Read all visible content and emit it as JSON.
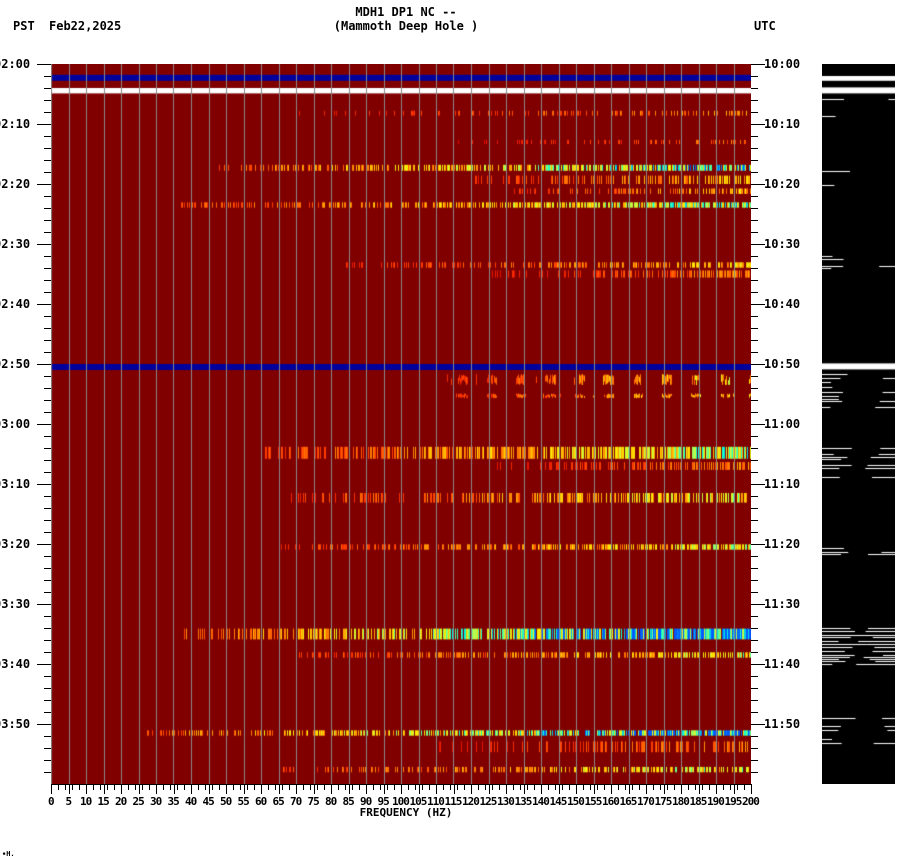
{
  "header": {
    "station_line": "MDH1 DP1 NC --",
    "location_line": "(Mammoth Deep Hole )",
    "left_timezone": "PST",
    "date": "Feb22,2025",
    "right_timezone": "UTC"
  },
  "footer": {
    "mark": "∙H."
  },
  "colors": {
    "background": "#800000",
    "grid": "#888888",
    "gap_blue": "#00009c",
    "gap_white": "#ffffff",
    "seismogram_bg": "#000000",
    "seismogram_trace": "#ffffff"
  },
  "chart_data": {
    "type": "heatmap",
    "title": "MDH1 DP1 NC -- (Mammoth Deep Hole )",
    "subtitle": "Feb22,2025",
    "xlabel": "FREQUENCY (HZ)",
    "ylabel_left": "PST",
    "ylabel_right": "UTC",
    "xlim": [
      0,
      200
    ],
    "x_ticks": [
      0,
      5,
      10,
      15,
      20,
      25,
      30,
      35,
      40,
      45,
      50,
      55,
      60,
      65,
      70,
      75,
      80,
      85,
      90,
      95,
      100,
      105,
      110,
      115,
      120,
      125,
      130,
      135,
      140,
      145,
      150,
      155,
      160,
      165,
      170,
      175,
      180,
      185,
      190,
      195,
      200
    ],
    "x_minor_tick_step": 1,
    "y_range_minutes": [
      0,
      120
    ],
    "y_ticks_left": [
      "02:00",
      "02:10",
      "02:20",
      "02:30",
      "02:40",
      "02:50",
      "03:00",
      "03:10",
      "03:20",
      "03:30",
      "03:40",
      "03:50"
    ],
    "y_ticks_right": [
      "10:00",
      "10:10",
      "10:20",
      "10:30",
      "10:40",
      "10:50",
      "11:00",
      "11:10",
      "11:20",
      "11:30",
      "11:40",
      "11:50"
    ],
    "y_minor_tick_step_min": 2,
    "grid": {
      "vertical_every_hz": 5
    },
    "colormap": "dark-red (low) -> red -> orange -> yellow -> cyan -> blue (high)",
    "gaps": [
      {
        "minute_start": 1.8,
        "minute_end": 2.8,
        "color": "blue"
      },
      {
        "minute_start": 4.0,
        "minute_end": 4.9,
        "color": "white"
      },
      {
        "minute_start": 50.0,
        "minute_end": 51.0,
        "color": "blue"
      }
    ],
    "bands": [
      {
        "minute": 8.2,
        "height_min": 0.8,
        "f_start": 65,
        "f_end": 200,
        "intensity": 0.35,
        "density": 0.35
      },
      {
        "minute": 13.0,
        "height_min": 0.7,
        "f_start": 115,
        "f_end": 200,
        "intensity": 0.3,
        "density": 0.25
      },
      {
        "minute": 17.3,
        "height_min": 1.0,
        "f_start": 45,
        "f_end": 200,
        "intensity": 0.75,
        "density": 0.75
      },
      {
        "minute": 19.3,
        "height_min": 1.4,
        "f_start": 120,
        "f_end": 200,
        "intensity": 0.45,
        "density": 0.55
      },
      {
        "minute": 21.2,
        "height_min": 0.9,
        "f_start": 130,
        "f_end": 200,
        "intensity": 0.45,
        "density": 0.45
      },
      {
        "minute": 23.5,
        "height_min": 0.9,
        "f_start": 37,
        "f_end": 200,
        "intensity": 0.65,
        "density": 0.8
      },
      {
        "minute": 33.5,
        "height_min": 0.9,
        "f_start": 80,
        "f_end": 200,
        "intensity": 0.45,
        "density": 0.55
      },
      {
        "minute": 35.0,
        "height_min": 1.2,
        "f_start": 125,
        "f_end": 200,
        "intensity": 0.35,
        "density": 0.5
      },
      {
        "minute": 52.6,
        "height_min": 1.8,
        "f_start": 112,
        "f_end": 200,
        "intensity": 0.5,
        "density": 0.35,
        "periodic": 8.3
      },
      {
        "minute": 55.3,
        "height_min": 0.8,
        "f_start": 112,
        "f_end": 200,
        "intensity": 0.5,
        "density": 0.35,
        "periodic": 8.3
      },
      {
        "minute": 64.8,
        "height_min": 2.0,
        "f_start": 60,
        "f_end": 200,
        "intensity": 0.62,
        "density": 0.85
      },
      {
        "minute": 67.0,
        "height_min": 1.3,
        "f_start": 125,
        "f_end": 200,
        "intensity": 0.35,
        "density": 0.5
      },
      {
        "minute": 72.3,
        "height_min": 1.6,
        "f_start": 67,
        "f_end": 200,
        "intensity": 0.55,
        "density": 0.55
      },
      {
        "minute": 80.5,
        "height_min": 0.9,
        "f_start": 65,
        "f_end": 200,
        "intensity": 0.55,
        "density": 0.7
      },
      {
        "minute": 95.0,
        "height_min": 1.8,
        "f_start": 38,
        "f_end": 200,
        "intensity": 0.9,
        "density": 0.95
      },
      {
        "minute": 98.5,
        "height_min": 0.9,
        "f_start": 70,
        "f_end": 200,
        "intensity": 0.55,
        "density": 0.6
      },
      {
        "minute": 111.5,
        "height_min": 0.9,
        "f_start": 27,
        "f_end": 200,
        "intensity": 0.85,
        "density": 0.9
      },
      {
        "minute": 113.8,
        "height_min": 1.8,
        "f_start": 110,
        "f_end": 200,
        "intensity": 0.35,
        "density": 0.4
      },
      {
        "minute": 117.6,
        "height_min": 0.9,
        "f_start": 65,
        "f_end": 200,
        "intensity": 0.6,
        "density": 0.55
      }
    ]
  },
  "seismogram": {
    "gaps": [
      {
        "minute_start": 2.0,
        "minute_end": 2.8
      },
      {
        "minute_start": 3.9,
        "minute_end": 4.9
      },
      {
        "minute_start": 49.9,
        "minute_end": 50.9
      }
    ],
    "bursts": [
      {
        "minute": 6.0,
        "span": 3.0,
        "strength": 0.4
      },
      {
        "minute": 17.5,
        "span": 4.5,
        "strength": 0.55
      },
      {
        "minute": 32.5,
        "span": 2.0,
        "strength": 0.35
      },
      {
        "minute": 51.5,
        "span": 6.0,
        "strength": 0.5
      },
      {
        "minute": 64.5,
        "span": 4.5,
        "strength": 0.75
      },
      {
        "minute": 80.5,
        "span": 1.5,
        "strength": 0.6
      },
      {
        "minute": 94.5,
        "span": 6.0,
        "strength": 0.95
      },
      {
        "minute": 109.5,
        "span": 4.0,
        "strength": 0.7
      }
    ]
  }
}
